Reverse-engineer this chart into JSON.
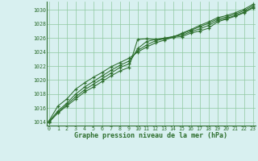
{
  "title": "Graphe pression niveau de la mer (hPa)",
  "background_color": "#d8f0f0",
  "grid_color": "#90c8a0",
  "line_color": "#2d6e2d",
  "ylim": [
    1013.5,
    1031.2
  ],
  "xlim": [
    -0.3,
    23.3
  ],
  "yticks": [
    1014,
    1016,
    1018,
    1020,
    1022,
    1024,
    1026,
    1028,
    1030
  ],
  "xticks": [
    0,
    1,
    2,
    3,
    4,
    5,
    6,
    7,
    8,
    9,
    10,
    11,
    12,
    13,
    14,
    15,
    16,
    17,
    18,
    19,
    20,
    21,
    22,
    23
  ],
  "line1": [
    1014.0,
    1015.3,
    1016.3,
    1017.3,
    1018.3,
    1019.0,
    1019.8,
    1020.6,
    1021.3,
    1021.8,
    1025.8,
    1025.9,
    1025.8,
    1025.9,
    1026.1,
    1026.2,
    1026.7,
    1027.0,
    1027.4,
    1028.3,
    1028.7,
    1029.1,
    1029.6,
    1030.3
  ],
  "line2": [
    1014.0,
    1015.4,
    1016.5,
    1017.6,
    1018.6,
    1019.4,
    1020.2,
    1021.0,
    1021.8,
    1022.3,
    1024.5,
    1025.5,
    1025.8,
    1026.0,
    1026.2,
    1026.4,
    1026.9,
    1027.3,
    1027.8,
    1028.5,
    1028.8,
    1029.2,
    1029.7,
    1030.4
  ],
  "line3": [
    1014.1,
    1015.6,
    1016.7,
    1018.0,
    1019.0,
    1019.8,
    1020.6,
    1021.4,
    1022.1,
    1022.7,
    1024.2,
    1025.0,
    1025.6,
    1025.9,
    1026.2,
    1026.6,
    1027.1,
    1027.6,
    1028.1,
    1028.7,
    1029.0,
    1029.4,
    1029.9,
    1030.6
  ],
  "line4": [
    1014.2,
    1016.3,
    1017.3,
    1018.7,
    1019.6,
    1020.4,
    1021.1,
    1021.9,
    1022.5,
    1023.1,
    1024.0,
    1024.7,
    1025.3,
    1025.7,
    1026.1,
    1026.7,
    1027.2,
    1027.8,
    1028.3,
    1028.9,
    1029.2,
    1029.6,
    1030.1,
    1030.8
  ]
}
